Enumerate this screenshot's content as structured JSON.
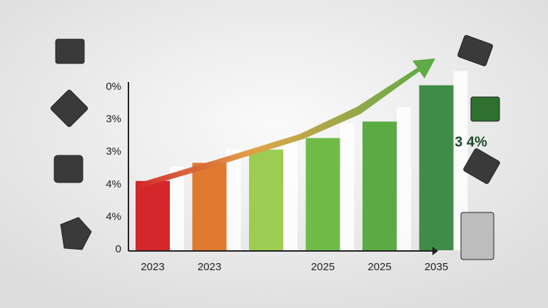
{
  "chart_data": {
    "type": "bar",
    "categories": [
      "2023",
      "2023",
      null,
      "2025",
      "2025",
      "2035"
    ],
    "values": [
      42,
      53,
      61,
      68,
      78,
      100
    ],
    "colors": [
      "#d3272b",
      "#e07a30",
      "#9ccd52",
      "#70bb48",
      "#5aab44",
      "#3e8c48"
    ],
    "ylim": [
      0,
      105
    ],
    "y_labels": [
      "0%",
      "3%",
      "3%",
      "4%",
      "4%",
      "0"
    ],
    "annotation": "3 4%"
  }
}
